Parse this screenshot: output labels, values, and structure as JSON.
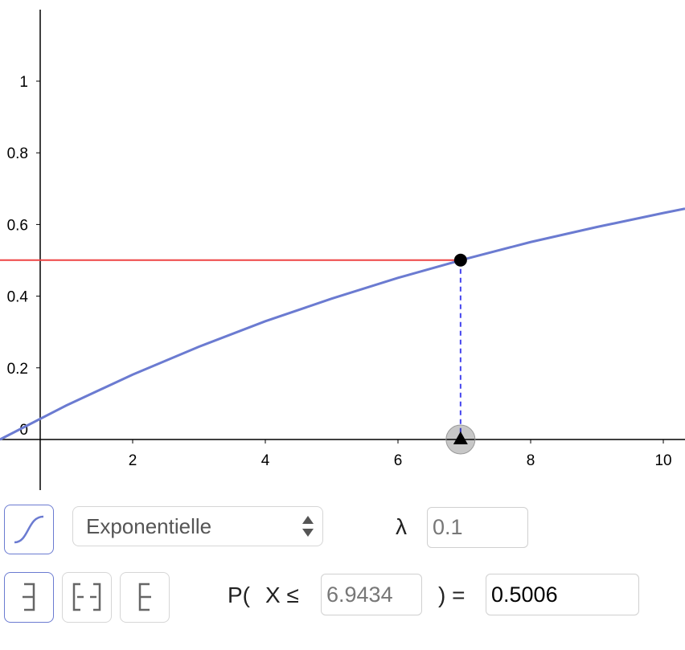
{
  "chart_data": {
    "type": "line",
    "xlim": [
      0,
      10.327
    ],
    "ylim": [
      -0.1413,
      1.2265
    ],
    "xticks": [
      2,
      4,
      6,
      8,
      10
    ],
    "yticks": [
      0,
      0.2,
      0.4,
      0.6,
      0.8,
      1
    ],
    "series": [
      {
        "color": "#6b7bd1",
        "x": [
          0,
          1,
          2,
          3,
          4,
          5,
          6,
          7,
          8,
          9,
          10,
          10.327
        ],
        "values": [
          0,
          0.095,
          0.181,
          0.259,
          0.33,
          0.393,
          0.451,
          0.503,
          0.551,
          0.593,
          0.632,
          0.644
        ]
      }
    ],
    "guide_color": "#ee4444",
    "drop_color": "#4444ee"
  },
  "controls": {
    "distribution": "Exponentielle",
    "lambda_label": "λ",
    "lambda": 0.1,
    "p_open": "P(",
    "x_le": "X ≤",
    "close_eq": ") =",
    "bound": 6.9434,
    "probability": 0.5006
  }
}
